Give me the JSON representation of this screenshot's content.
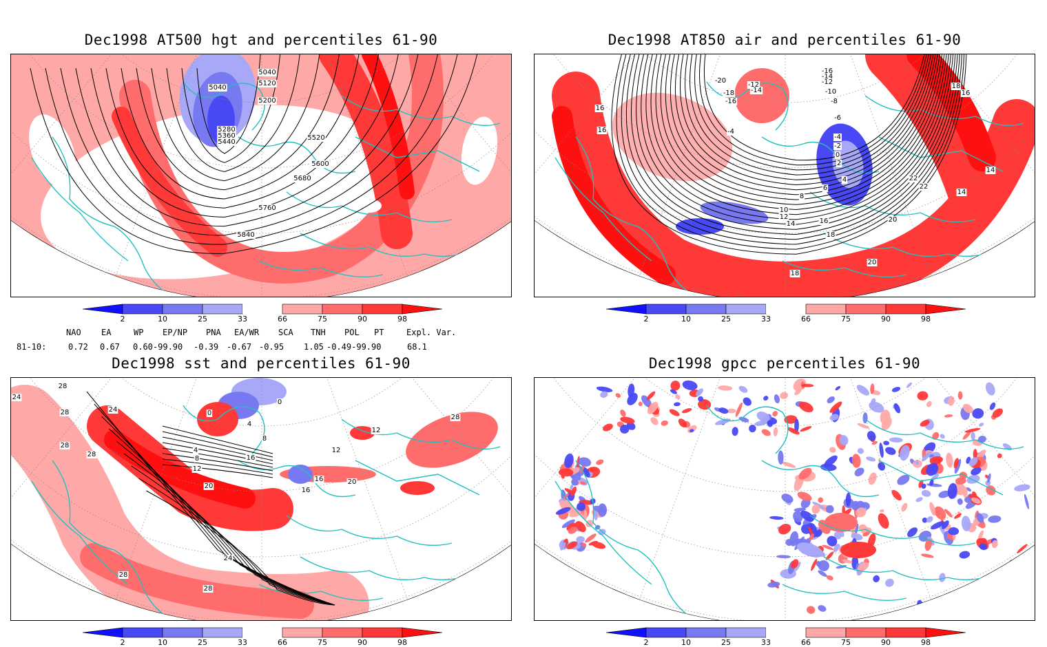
{
  "panels": [
    {
      "id": "hgt",
      "title": "Dec1998 AT500 hgt and percentiles 61-90",
      "contour_labels": [
        "5040",
        "5040",
        "5120",
        "5200",
        "5280",
        "5360",
        "5440",
        "5520",
        "5600",
        "5680",
        "5760",
        "5840"
      ]
    },
    {
      "id": "air",
      "title": "Dec1998 AT850 air and percentiles 61-90",
      "contour_labels": [
        "-20",
        "-12",
        "-14",
        "-18",
        "-16",
        "-16",
        "-14",
        "-12",
        "-10",
        "-8",
        "-6",
        "-4",
        "-4",
        "-2",
        "0",
        "2",
        "4",
        "6",
        "8",
        "10",
        "12",
        "14",
        "16",
        "18",
        "20",
        "22",
        "22",
        "20",
        "18",
        "16",
        "16",
        "18",
        "16",
        "14",
        "14"
      ]
    },
    {
      "id": "sst",
      "title": "Dec1998 sst and percentiles 61-90",
      "contour_labels": [
        "28",
        "28",
        "24",
        "24",
        "28",
        "28",
        "4",
        "8",
        "12",
        "16",
        "20",
        "24",
        "28",
        "28",
        "0",
        "0",
        "4",
        "8",
        "16",
        "16",
        "20",
        "12",
        "12",
        "28"
      ]
    },
    {
      "id": "gpcc",
      "title": "Dec1998 gpcc percentiles 61-90",
      "contour_labels": []
    }
  ],
  "colorbar": {
    "labels": [
      "2",
      "10",
      "25",
      "33",
      "66",
      "75",
      "90",
      "98"
    ],
    "colors": [
      "#1010ff",
      "#4848f4",
      "#7878f0",
      "#a8a8f8",
      "#ffffff",
      "#ffa8a8",
      "#ff6c6c",
      "#ff3838",
      "#ff1010"
    ]
  },
  "indices": {
    "headers": [
      "NAO",
      "EA",
      "WP",
      "EP/NP",
      "PNA",
      "EA/WR",
      "SCA",
      "TNH",
      "POL",
      "PT",
      "Expl. Var."
    ],
    "row_label": "81-10:",
    "values": [
      "0.72",
      "0.67",
      "0.60-99.90",
      "-0.39",
      "-0.67",
      "-0.95",
      "1.05",
      "-0.49-99.90",
      "68.1"
    ]
  },
  "colors": {
    "coast": "#20c0c0",
    "contour": "#000000"
  }
}
